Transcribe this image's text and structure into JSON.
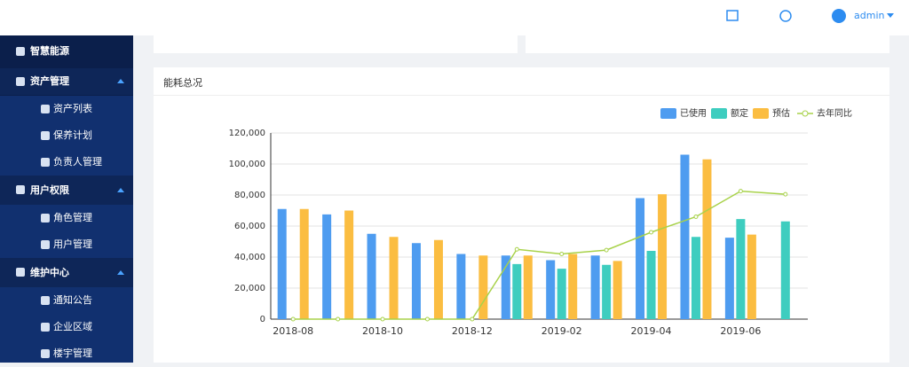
{
  "header": {
    "user": "admin"
  },
  "sidebar": {
    "items": [
      "智慧能源",
      "资产管理",
      "资产列表",
      "保养计划",
      "负责人管理",
      "用户权限",
      "角色管理",
      "用户管理",
      "维护中心",
      "通知公告",
      "企业区域",
      "楼宇管理"
    ]
  },
  "card": {
    "title": "能耗总况"
  },
  "chart_data": {
    "type": "bar",
    "categories": [
      "2018-08",
      null,
      "2018-10",
      null,
      "2018-12",
      null,
      "2019-02",
      null,
      "2019-04",
      null,
      "2019-06",
      null
    ],
    "series": [
      {
        "name": "已使用",
        "type": "bar",
        "color": "#4e9cf0",
        "values": [
          71000,
          67500,
          55000,
          49000,
          42000,
          41000,
          38000,
          41000,
          78000,
          106000,
          52500,
          null
        ]
      },
      {
        "name": "额定",
        "type": "bar",
        "color": "#3ecdbf",
        "values": [
          null,
          null,
          null,
          null,
          null,
          35500,
          32500,
          35000,
          44000,
          53000,
          64500,
          63000
        ]
      },
      {
        "name": "预估",
        "type": "bar",
        "color": "#fbbd41",
        "values": [
          71000,
          70000,
          53000,
          51000,
          41000,
          41000,
          42000,
          37500,
          80500,
          103000,
          54500,
          null
        ]
      },
      {
        "name": "去年同比",
        "type": "line",
        "color": "#a8d24a",
        "values": [
          0,
          0,
          0,
          0,
          0,
          45000,
          42000,
          44500,
          56000,
          66000,
          82500,
          80500
        ]
      }
    ],
    "ylim": [
      0,
      120000
    ],
    "yticks": [
      0,
      {
        "value": 20000,
        "label": "20,000"
      },
      {
        "value": 40000,
        "label": "40,000"
      },
      {
        "value": 60000,
        "label": "60,000"
      },
      {
        "value": 80000,
        "label": "80,000"
      },
      {
        "value": 100000,
        "label": "100,000"
      },
      {
        "value": 120000,
        "label": "120,000"
      }
    ],
    "grid": true
  }
}
